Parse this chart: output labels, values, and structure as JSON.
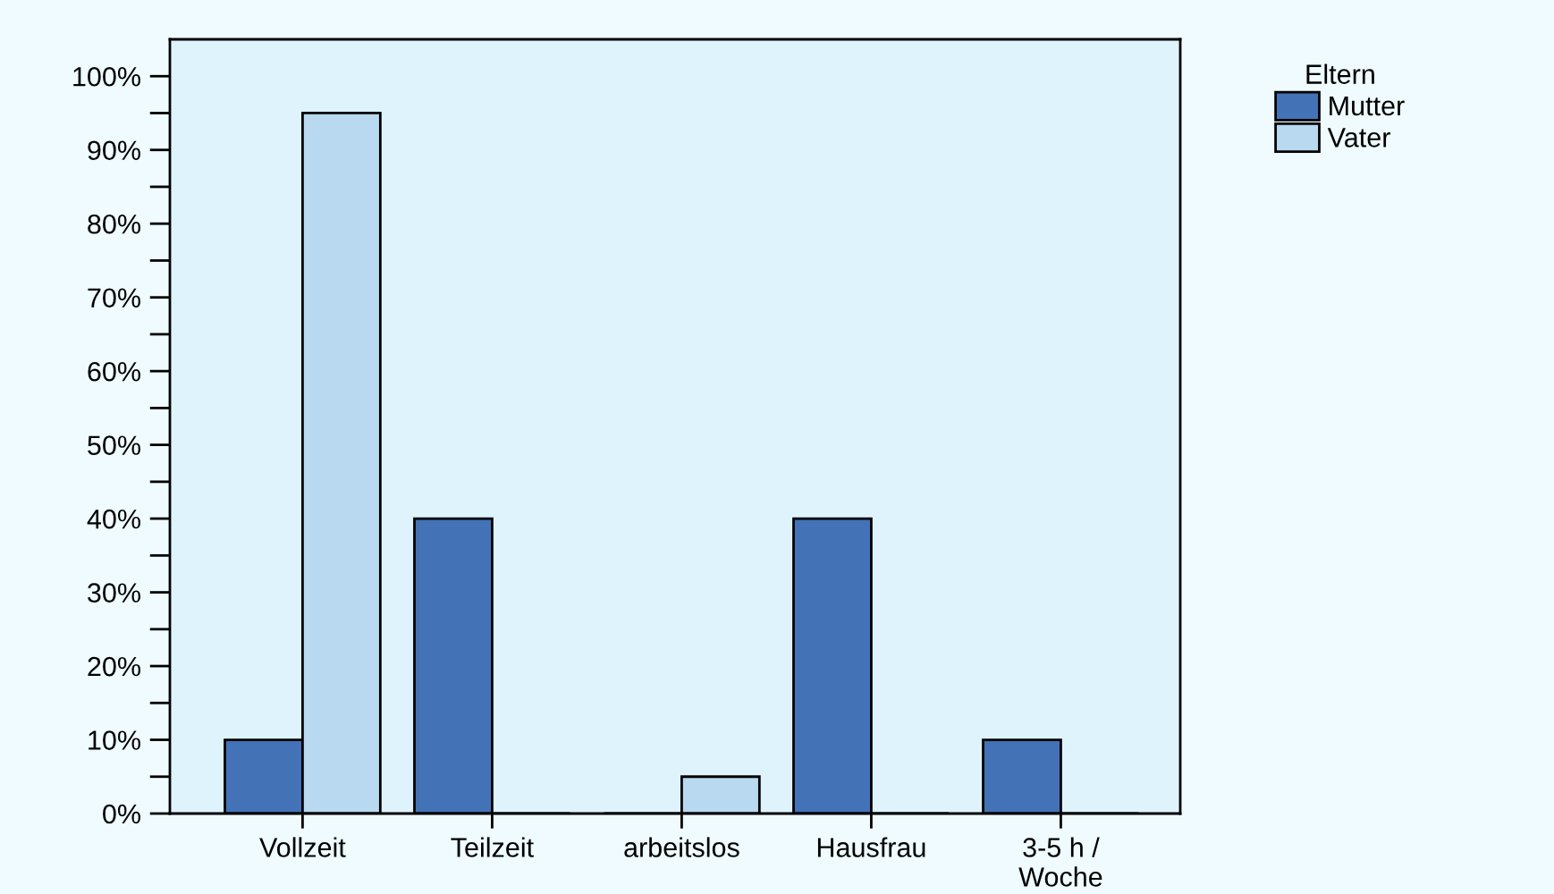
{
  "chart_data": {
    "type": "bar",
    "categories": [
      "Vollzeit",
      "Teilzeit",
      "arbeitslos",
      "Hausfrau",
      "3-5 h /\nWoche"
    ],
    "series": [
      {
        "name": "Mutter",
        "color": "#4372b6",
        "values": [
          10,
          40,
          0,
          40,
          10
        ]
      },
      {
        "name": "Vater",
        "color": "#b8d9ef",
        "values": [
          95,
          0,
          5,
          0,
          0
        ]
      }
    ],
    "legend_title": "Eltern",
    "legend": "top right",
    "ylim": [
      0,
      105
    ],
    "yticks": [
      {
        "value": 0,
        "label": "0%"
      },
      {
        "value": 5,
        "label": null
      },
      {
        "value": 10,
        "label": "10%"
      },
      {
        "value": 15,
        "label": null
      },
      {
        "value": 20,
        "label": "20%"
      },
      {
        "value": 25,
        "label": null
      },
      {
        "value": 30,
        "label": "30%"
      },
      {
        "value": 35,
        "label": null
      },
      {
        "value": 40,
        "label": "40%"
      },
      {
        "value": 45,
        "label": null
      },
      {
        "value": 50,
        "label": "50%"
      },
      {
        "value": 55,
        "label": null
      },
      {
        "value": 60,
        "label": "60%"
      },
      {
        "value": 65,
        "label": null
      },
      {
        "value": 70,
        "label": "70%"
      },
      {
        "value": 75,
        "label": null
      },
      {
        "value": 80,
        "label": "80%"
      },
      {
        "value": 85,
        "label": null
      },
      {
        "value": 90,
        "label": "90%"
      },
      {
        "value": 95,
        "label": null
      },
      {
        "value": 100,
        "label": "100%"
      }
    ],
    "grid": false
  }
}
